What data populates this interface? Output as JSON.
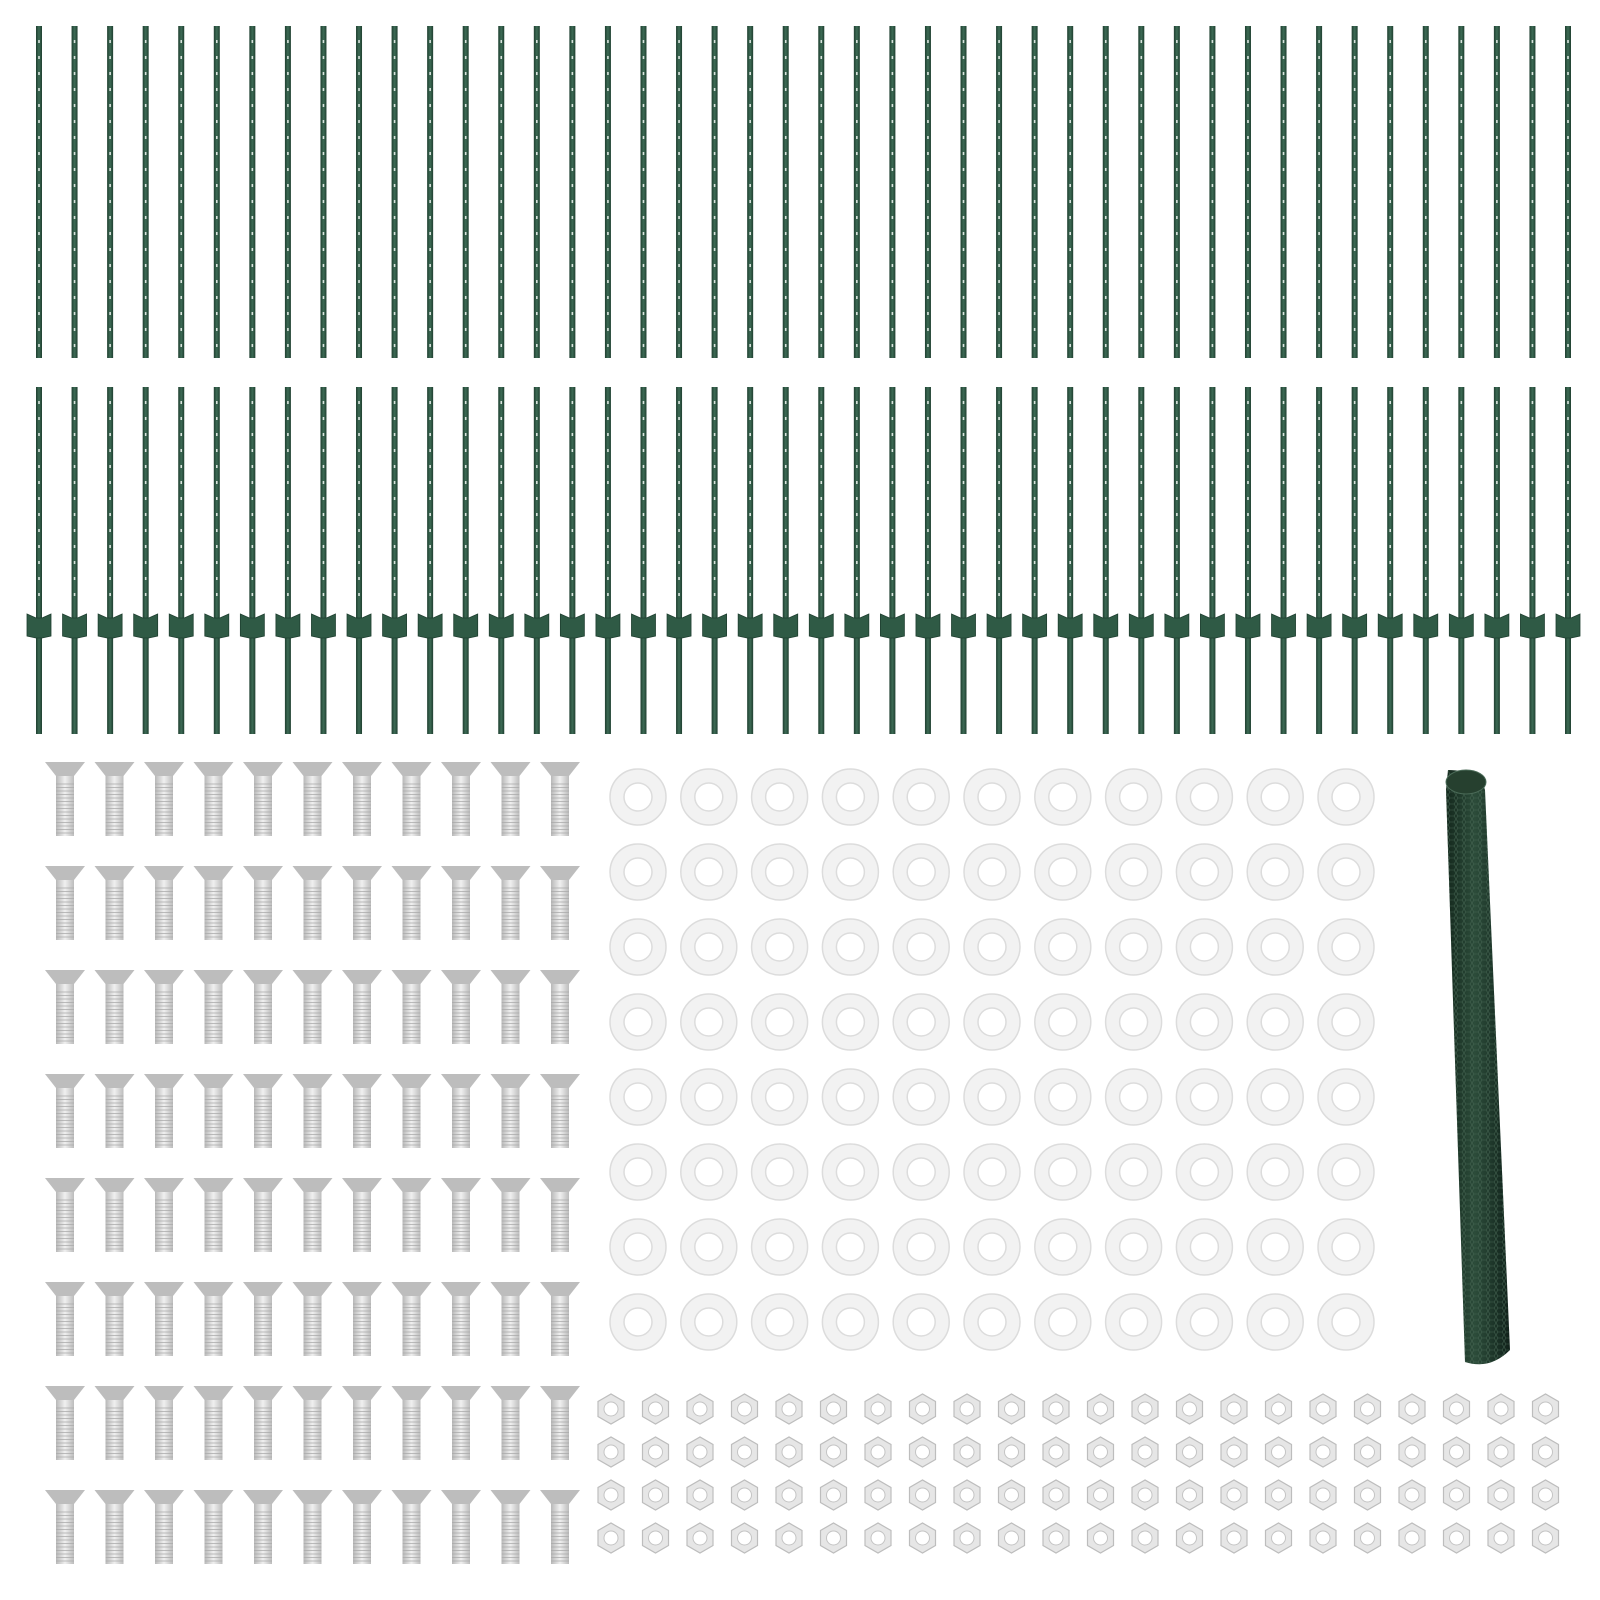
{
  "product": {
    "posts_top_row": 44,
    "posts_bottom_row_with_anchor": 44,
    "bolts": {
      "columns": 11,
      "rows": 8
    },
    "washers": {
      "columns": 11,
      "rows": 8
    },
    "nuts": {
      "columns": 22,
      "rows": 4
    },
    "mesh_rolls": 1
  },
  "colors": {
    "post_green": "#2f5a45",
    "post_dark": "#1f3f30",
    "bolt_grey": "#c9c9c9",
    "washer_white": "#f2f2f2",
    "washer_edge": "#dcdcdc",
    "nut_grey": "#e6e6e6",
    "mesh_green": "#1f3d2c"
  }
}
